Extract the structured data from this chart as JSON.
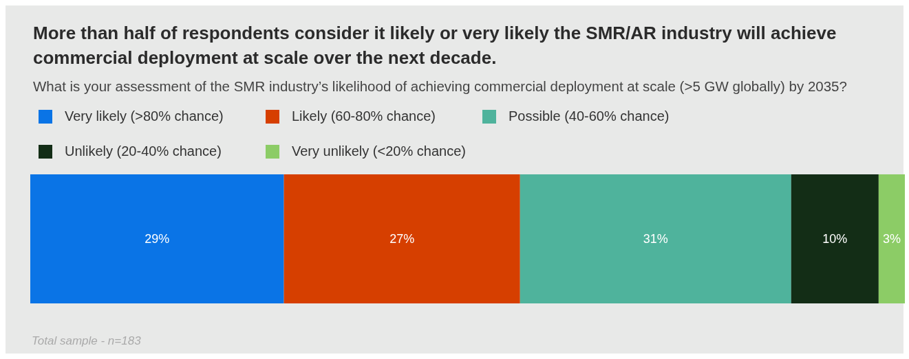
{
  "chart_data": {
    "type": "bar",
    "orientation": "horizontal",
    "stacked": true,
    "title": "More than half of respondents consider it likely or very likely the SMR/AR industry will achieve commercial deployment at scale over the next decade.",
    "subtitle": "What is your assessment of the SMR industry’s likelihood of achieving commercial deployment at scale (>5 GW globally) by 2035?",
    "categories": [
      null
    ],
    "xlim": [
      0,
      100
    ],
    "legend": "top",
    "series": [
      {
        "name": "Very likely (>80% chance)",
        "color": "#0a74e6",
        "values": [
          29
        ],
        "value_labels": [
          "29%"
        ]
      },
      {
        "name": "Likely (60-80% chance)",
        "color": "#d63f00",
        "values": [
          27
        ],
        "value_labels": [
          "27%"
        ]
      },
      {
        "name": "Possible (40-60% chance)",
        "color": "#4fb39c",
        "values": [
          31
        ],
        "value_labels": [
          "31%"
        ]
      },
      {
        "name": "Unlikely (20-40% chance)",
        "color": "#132d16",
        "values": [
          10
        ],
        "value_labels": [
          "10%"
        ]
      },
      {
        "name": "Very unlikely (<20% chance)",
        "color": "#8ccc66",
        "values": [
          3
        ],
        "value_labels": [
          "3%"
        ]
      }
    ],
    "annotations": [
      "Total sample - n=183"
    ]
  }
}
